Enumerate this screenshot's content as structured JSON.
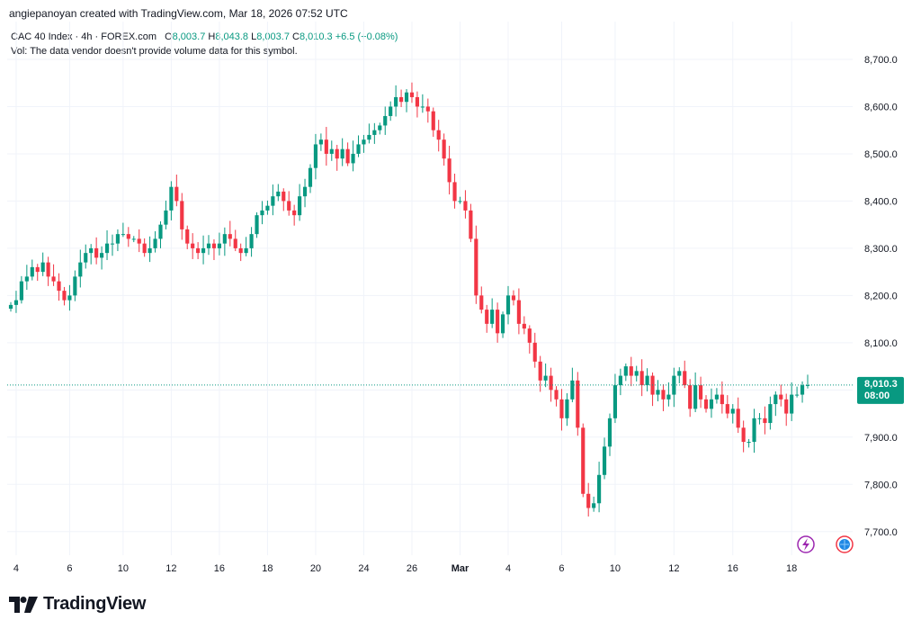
{
  "header": {
    "created_by": "angiepanoyan created with TradingView.com, Mar 18, 2026 07:52 UTC"
  },
  "legend": {
    "symbol": "CAC 40 Index · 4h · FOREX.com",
    "o_label": "O",
    "o_value": "8,003.7",
    "h_label": "H",
    "h_value": "8,043.8",
    "l_label": "L",
    "l_value": "8,003.7",
    "c_label": "C",
    "c_value": "8,010.3",
    "change": "+6.5 (+0.08%)"
  },
  "volume_note": "Vol: The data vendor doesn't provide volume data for this symbol.",
  "price_tag": {
    "price": "8,010.3",
    "time": "08:00"
  },
  "footer": {
    "brand": "TradingView"
  },
  "colors": {
    "up": "#089981",
    "down": "#f23645",
    "accent": "#089981",
    "grid": "#f0f3fa"
  },
  "icons": {
    "flash": "lightning-icon",
    "globe": "globe-flag-icon",
    "logo": "tradingview-logo-icon"
  },
  "chart_data": {
    "type": "candlestick",
    "title": "CAC 40 Index · 4h · FOREX.com",
    "ylim": [
      7650,
      8780
    ],
    "y_ticks": [
      {
        "value": 8700,
        "label": "8,700.0"
      },
      {
        "value": 8600,
        "label": "8,600.0"
      },
      {
        "value": 8500,
        "label": "8,500.0"
      },
      {
        "value": 8400,
        "label": "8,400.0"
      },
      {
        "value": 8300,
        "label": "8,300.0"
      },
      {
        "value": 8200,
        "label": "8,200.0"
      },
      {
        "value": 8100,
        "label": "8,100.0"
      },
      {
        "value": 8000,
        "label": "8,000.0"
      },
      {
        "value": 7900,
        "label": "7,900.0"
      },
      {
        "value": 7800,
        "label": "7,800.0"
      },
      {
        "value": 7700,
        "label": "7,700.0"
      }
    ],
    "x_ticks": [
      {
        "index": 1,
        "label": "4",
        "bold": false
      },
      {
        "index": 11,
        "label": "6",
        "bold": false
      },
      {
        "index": 21,
        "label": "10",
        "bold": false
      },
      {
        "index": 30,
        "label": "12",
        "bold": false
      },
      {
        "index": 39,
        "label": "16",
        "bold": false
      },
      {
        "index": 48,
        "label": "18",
        "bold": false
      },
      {
        "index": 57,
        "label": "20",
        "bold": false
      },
      {
        "index": 66,
        "label": "24",
        "bold": false
      },
      {
        "index": 75,
        "label": "26",
        "bold": false
      },
      {
        "index": 84,
        "label": "Mar",
        "bold": true
      },
      {
        "index": 93,
        "label": "4",
        "bold": false
      },
      {
        "index": 103,
        "label": "6",
        "bold": false
      },
      {
        "index": 113,
        "label": "10",
        "bold": false
      },
      {
        "index": 124,
        "label": "12",
        "bold": false
      },
      {
        "index": 135,
        "label": "16",
        "bold": false
      },
      {
        "index": 146,
        "label": "18",
        "bold": false
      }
    ],
    "last_price": 8010.3,
    "closes": [
      8180,
      8190,
      8230,
      8240,
      8260,
      8250,
      8270,
      8240,
      8230,
      8210,
      8190,
      8200,
      8240,
      8270,
      8290,
      8300,
      8280,
      8290,
      8310,
      8310,
      8330,
      8330,
      8320,
      8320,
      8310,
      8290,
      8300,
      8320,
      8350,
      8380,
      8430,
      8400,
      8340,
      8310,
      8300,
      8290,
      8300,
      8310,
      8300,
      8310,
      8330,
      8320,
      8300,
      8290,
      8300,
      8330,
      8370,
      8380,
      8390,
      8410,
      8420,
      8400,
      8380,
      8370,
      8410,
      8430,
      8470,
      8520,
      8530,
      8500,
      8510,
      8490,
      8510,
      8480,
      8500,
      8520,
      8530,
      8540,
      8550,
      8560,
      8580,
      8600,
      8620,
      8610,
      8630,
      8620,
      8600,
      8600,
      8590,
      8550,
      8530,
      8490,
      8440,
      8400,
      8400,
      8380,
      8320,
      8200,
      8170,
      8140,
      8170,
      8120,
      8160,
      8200,
      8190,
      8140,
      8130,
      8100,
      8060,
      8020,
      8030,
      8000,
      7980,
      7940,
      7980,
      8020,
      7920,
      7780,
      7750,
      7760,
      7820,
      7880,
      7940,
      8010,
      8030,
      8050,
      8030,
      8040,
      8010,
      8030,
      7990,
      8000,
      7980,
      7990,
      8030,
      8040,
      8010,
      7960,
      8010,
      7980,
      7960,
      7980,
      7990,
      7970,
      7950,
      7960,
      7920,
      7890,
      7890,
      7940,
      7940,
      7930,
      7970,
      7990,
      7980,
      7950,
      7990,
      7990,
      8010,
      8010.3
    ]
  }
}
